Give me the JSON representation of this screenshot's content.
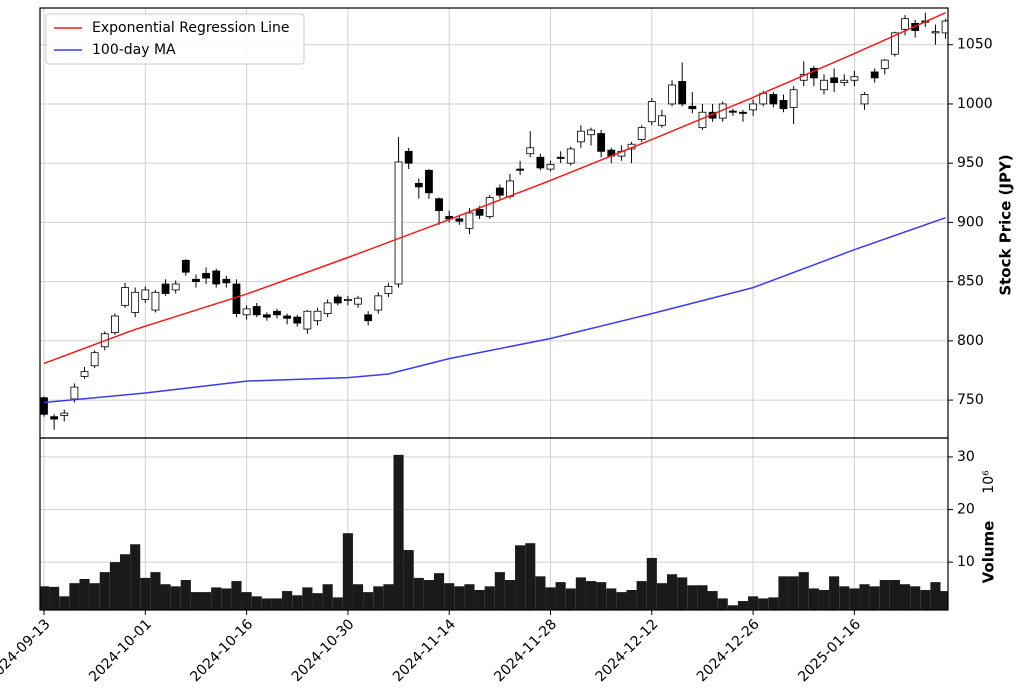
{
  "chart_data": [
    {
      "type": "candlestick",
      "ylabel": "Stock Price (JPY)",
      "x": [
        "2024-09-13",
        "2024-09-17",
        "2024-09-18",
        "2024-09-19",
        "2024-09-20",
        "2024-09-24",
        "2024-09-25",
        "2024-09-26",
        "2024-09-27",
        "2024-09-30",
        "2024-10-01",
        "2024-10-02",
        "2024-10-03",
        "2024-10-04",
        "2024-10-07",
        "2024-10-08",
        "2024-10-09",
        "2024-10-10",
        "2024-10-11",
        "2024-10-15",
        "2024-10-16",
        "2024-10-17",
        "2024-10-18",
        "2024-10-21",
        "2024-10-22",
        "2024-10-23",
        "2024-10-24",
        "2024-10-25",
        "2024-10-28",
        "2024-10-29",
        "2024-10-30",
        "2024-10-31",
        "2024-11-01",
        "2024-11-05",
        "2024-11-06",
        "2024-11-07",
        "2024-11-08",
        "2024-11-11",
        "2024-11-12",
        "2024-11-13",
        "2024-11-14",
        "2024-11-15",
        "2024-11-18",
        "2024-11-19",
        "2024-11-20",
        "2024-11-21",
        "2024-11-22",
        "2024-11-25",
        "2024-11-26",
        "2024-11-27",
        "2024-11-28",
        "2024-11-29",
        "2024-12-02",
        "2024-12-03",
        "2024-12-04",
        "2024-12-05",
        "2024-12-06",
        "2024-12-09",
        "2024-12-10",
        "2024-12-11",
        "2024-12-12",
        "2024-12-13",
        "2024-12-16",
        "2024-12-17",
        "2024-12-18",
        "2024-12-19",
        "2024-12-20",
        "2024-12-23",
        "2024-12-24",
        "2024-12-25",
        "2024-12-26",
        "2024-12-27",
        "2024-12-30",
        "2025-01-06",
        "2025-01-07",
        "2025-01-08",
        "2025-01-09",
        "2025-01-10",
        "2025-01-14",
        "2025-01-15",
        "2025-01-16",
        "2025-01-17",
        "2025-01-20",
        "2025-01-21",
        "2025-01-22",
        "2025-01-23",
        "2025-01-24",
        "2025-01-27",
        "2025-01-28",
        "2025-01-29"
      ],
      "open": [
        752,
        736,
        737,
        751,
        770,
        779,
        795,
        807,
        830,
        824,
        835,
        826,
        848,
        843,
        868,
        852,
        857,
        859,
        852,
        848,
        822,
        829,
        822,
        825,
        821,
        820,
        810,
        817,
        823,
        837,
        834,
        831,
        822,
        826,
        840,
        848,
        960,
        933,
        944,
        920,
        905,
        903,
        895,
        911,
        905,
        929,
        922,
        945,
        958,
        955,
        945,
        955,
        950,
        968,
        974,
        975,
        961,
        956,
        962,
        970,
        985,
        982,
        1000,
        1019,
        998,
        980,
        993,
        988,
        994,
        993,
        995,
        1000,
        1008,
        1003,
        997,
        1020,
        1030,
        1012,
        1022,
        1018,
        1020,
        1000,
        1027,
        1030,
        1042,
        1063,
        1068,
        1070,
        1060,
        1060
      ],
      "high": [
        753,
        738,
        742,
        764,
        778,
        792,
        808,
        823,
        849,
        845,
        846,
        843,
        852,
        851,
        869,
        856,
        862,
        861,
        855,
        852,
        830,
        832,
        824,
        827,
        823,
        822,
        826,
        828,
        835,
        839,
        838,
        838,
        825,
        841,
        849,
        972,
        963,
        937,
        945,
        921,
        910,
        906,
        912,
        914,
        923,
        932,
        941,
        952,
        977,
        958,
        952,
        960,
        964,
        982,
        980,
        978,
        963,
        965,
        968,
        982,
        1005,
        995,
        1020,
        1035,
        1010,
        1000,
        1000,
        1002,
        996,
        995,
        1004,
        1011,
        1010,
        1008,
        1015,
        1036,
        1032,
        1025,
        1030,
        1025,
        1028,
        1010,
        1030,
        1038,
        1061,
        1075,
        1071,
        1077,
        1067,
        1072
      ],
      "low": [
        736,
        725,
        732,
        748,
        768,
        777,
        792,
        805,
        828,
        820,
        832,
        824,
        838,
        840,
        855,
        845,
        848,
        845,
        845,
        820,
        818,
        820,
        817,
        819,
        814,
        812,
        806,
        813,
        820,
        830,
        830,
        828,
        813,
        823,
        837,
        845,
        945,
        920,
        920,
        898,
        900,
        898,
        890,
        903,
        903,
        920,
        920,
        940,
        955,
        944,
        943,
        950,
        948,
        963,
        965,
        955,
        950,
        952,
        950,
        968,
        982,
        980,
        998,
        998,
        992,
        978,
        985,
        985,
        990,
        985,
        990,
        998,
        997,
        993,
        983,
        1015,
        1015,
        1008,
        1010,
        1015,
        1015,
        995,
        1018,
        1025,
        1040,
        1058,
        1056,
        1065,
        1050,
        1055
      ],
      "close": [
        738,
        734,
        739,
        761,
        774,
        790,
        806,
        821,
        845,
        841,
        843,
        841,
        840,
        848,
        858,
        850,
        853,
        848,
        849,
        823,
        827,
        822,
        820,
        822,
        819,
        815,
        825,
        825,
        832,
        832,
        835,
        836,
        817,
        838,
        846,
        951,
        950,
        930,
        925,
        910,
        903,
        901,
        908,
        906,
        921,
        923,
        935,
        944,
        963,
        946,
        949,
        954,
        962,
        977,
        978,
        960,
        956,
        960,
        966,
        980,
        1002,
        990,
        1016,
        1000,
        996,
        993,
        988,
        1000,
        993,
        992,
        1000,
        1009,
        1000,
        996,
        1012,
        1025,
        1022,
        1020,
        1018,
        1020,
        1023,
        1008,
        1022,
        1037,
        1060,
        1072,
        1062,
        1069,
        1061,
        1070
      ],
      "up_color": "#ffffff",
      "down_color": "#000000",
      "edge_color": "#000000",
      "series": [
        {
          "name": "Exponential Regression Line",
          "color": "#ee1c1c",
          "x": [
            "2024-09-13",
            "2024-09-30",
            "2024-10-16",
            "2024-10-30",
            "2024-11-14",
            "2024-11-28",
            "2024-12-12",
            "2024-12-26",
            "2025-01-16",
            "2025-01-29"
          ],
          "values": [
            781,
            809.7,
            839.5,
            870.4,
            902.4,
            935.5,
            969.9,
            1005.5,
            1042.5,
            1077
          ]
        },
        {
          "name": "100-day MA",
          "color": "#3b3bee",
          "x": [
            "2024-09-13",
            "2024-10-01",
            "2024-10-16",
            "2024-10-30",
            "2024-11-06",
            "2024-11-14",
            "2024-11-28",
            "2024-12-12",
            "2024-12-26",
            "2025-01-16",
            "2025-01-29"
          ],
          "values": [
            748,
            756,
            766,
            769,
            772,
            785,
            802,
            823,
            845,
            877,
            904
          ]
        }
      ],
      "ylim": [
        718,
        1081
      ],
      "yticks": [
        750,
        800,
        850,
        900,
        950,
        1000,
        1050
      ],
      "grid": true,
      "legend": "upper left"
    },
    {
      "type": "bar",
      "ylabel": "Volume",
      "offset_label": "10⁶",
      "x": [
        "2024-09-13",
        "2024-09-17",
        "2024-09-18",
        "2024-09-19",
        "2024-09-20",
        "2024-09-24",
        "2024-09-25",
        "2024-09-26",
        "2024-09-27",
        "2024-09-30",
        "2024-10-01",
        "2024-10-02",
        "2024-10-03",
        "2024-10-04",
        "2024-10-07",
        "2024-10-08",
        "2024-10-09",
        "2024-10-10",
        "2024-10-11",
        "2024-10-15",
        "2024-10-16",
        "2024-10-17",
        "2024-10-18",
        "2024-10-21",
        "2024-10-22",
        "2024-10-23",
        "2024-10-24",
        "2024-10-25",
        "2024-10-28",
        "2024-10-29",
        "2024-10-30",
        "2024-10-31",
        "2024-11-01",
        "2024-11-05",
        "2024-11-06",
        "2024-11-07",
        "2024-11-08",
        "2024-11-11",
        "2024-11-12",
        "2024-11-13",
        "2024-11-14",
        "2024-11-15",
        "2024-11-18",
        "2024-11-19",
        "2024-11-20",
        "2024-11-21",
        "2024-11-22",
        "2024-11-25",
        "2024-11-26",
        "2024-11-27",
        "2024-11-28",
        "2024-11-29",
        "2024-12-02",
        "2024-12-03",
        "2024-12-04",
        "2024-12-05",
        "2024-12-06",
        "2024-12-09",
        "2024-12-10",
        "2024-12-11",
        "2024-12-12",
        "2024-12-13",
        "2024-12-16",
        "2024-12-17",
        "2024-12-18",
        "2024-12-19",
        "2024-12-20",
        "2024-12-23",
        "2024-12-24",
        "2024-12-25",
        "2024-12-26",
        "2024-12-27",
        "2024-12-30",
        "2025-01-06",
        "2025-01-07",
        "2025-01-08",
        "2025-01-09",
        "2025-01-10",
        "2025-01-14",
        "2025-01-15",
        "2025-01-16",
        "2025-01-17",
        "2025-01-20",
        "2025-01-21",
        "2025-01-22",
        "2025-01-23",
        "2025-01-24",
        "2025-01-27",
        "2025-01-28",
        "2025-01-29"
      ],
      "values": [
        5.4,
        5.3,
        3.5,
        6,
        6.8,
        6,
        8.1,
        10,
        11.5,
        13.4,
        7,
        8.1,
        5.8,
        5.4,
        6.6,
        4.3,
        4.3,
        5.2,
        5,
        6.4,
        4.3,
        3.5,
        3.1,
        3.1,
        4.5,
        3.7,
        5.2,
        4.1,
        5.8,
        3.3,
        15.5,
        5.8,
        4.3,
        5.4,
        5.8,
        30.4,
        12.3,
        7,
        6.6,
        7.9,
        6,
        5.4,
        5.8,
        4.7,
        5.4,
        8.1,
        6.6,
        13.2,
        13.6,
        7.3,
        5.2,
        6.2,
        5,
        7.1,
        6.4,
        6.2,
        5,
        4.3,
        4.7,
        6.4,
        10.8,
        6,
        7.7,
        7.1,
        5.6,
        5.6,
        4.5,
        3.1,
        1.8,
        2.6,
        3.5,
        3.1,
        3.3,
        7.3,
        7.3,
        8.1,
        5,
        4.7,
        7.3,
        5.4,
        5,
        5.8,
        5.4,
        6.6,
        6.6,
        5.8,
        5.4,
        4.7,
        6.2,
        4.5
      ],
      "color": "#1a1a1a",
      "ylim": [
        0.9,
        33.6
      ],
      "yticks": [
        10,
        20,
        30
      ],
      "xticks": [
        "2024-09-13",
        "2024-10-01",
        "2024-10-16",
        "2024-10-30",
        "2024-11-14",
        "2024-11-28",
        "2024-12-12",
        "2024-12-26",
        "2025-01-16"
      ],
      "grid": true
    }
  ]
}
